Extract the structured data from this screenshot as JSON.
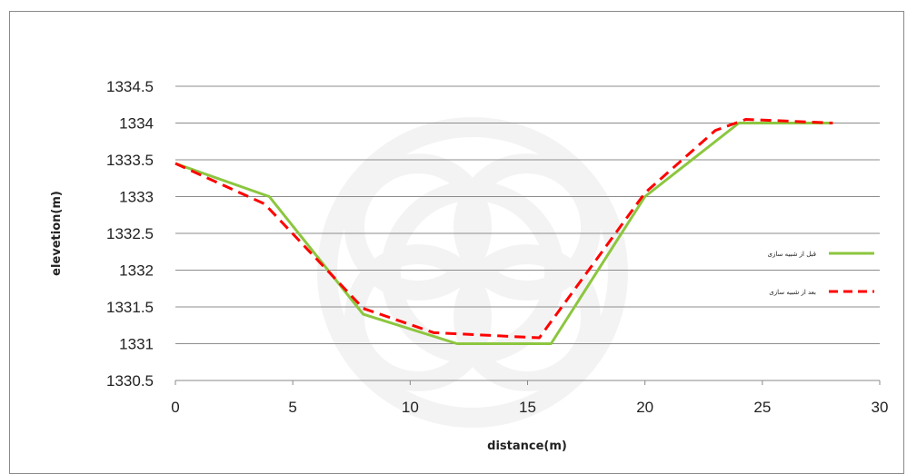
{
  "chart_data": {
    "type": "line",
    "xlabel": "distance(m)",
    "ylabel": "elevetion(m)",
    "xlim": [
      0,
      30
    ],
    "ylim": [
      1330.5,
      1334.5
    ],
    "xticks": [
      "0",
      "5",
      "10",
      "15",
      "20",
      "25",
      "30"
    ],
    "yticks": [
      "1330.5",
      "1331",
      "1331.5",
      "1332",
      "1332.5",
      "1333",
      "1333.5",
      "1334",
      "1334.5"
    ],
    "grid": "horizontal",
    "legend_position": "right",
    "series": [
      {
        "name": "قبل از شبیه سازی",
        "color": "#8cc63f",
        "style": "solid",
        "x": [
          0,
          4,
          8,
          12,
          16,
          20,
          24,
          28
        ],
        "y": [
          1333.45,
          1333.0,
          1331.4,
          1331.0,
          1331.0,
          1333.0,
          1334.0,
          1334.0
        ]
      },
      {
        "name": "بعد از شبیه سازی",
        "color": "#ff0000",
        "style": "dashed",
        "x": [
          0,
          3.8,
          8,
          11,
          15.5,
          20,
          23,
          24.3,
          28
        ],
        "y": [
          1333.45,
          1332.9,
          1331.48,
          1331.15,
          1331.08,
          1333.05,
          1333.9,
          1334.05,
          1334.0
        ]
      }
    ]
  }
}
